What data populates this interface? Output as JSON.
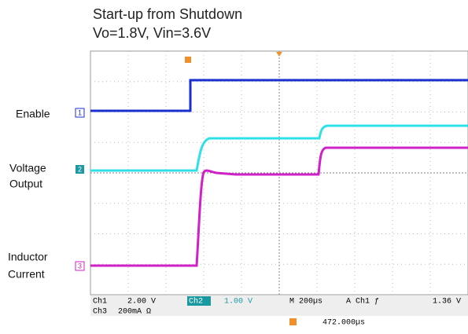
{
  "title": "Start-up from Shutdown",
  "subtitle": "Vo=1.8V, Vin=3.6V",
  "channels": [
    {
      "lines": [
        "Enable"
      ],
      "marker": "1"
    },
    {
      "lines": [
        "Voltage",
        "Output"
      ],
      "marker": "2"
    },
    {
      "lines": [
        "Inductor",
        "Current"
      ],
      "marker": "3"
    }
  ],
  "status": {
    "ch1": "Ch1",
    "ch1_scale": "2.00 V",
    "ch2": "Ch2",
    "ch2_scale": "1.00 V",
    "timebase": "M 200µs",
    "trigger": "A  Ch1  ƒ",
    "trigger_level": "1.36 V",
    "ch3": "Ch3",
    "ch3_scale": "200mA Ω",
    "delay": "472.000µs"
  }
}
